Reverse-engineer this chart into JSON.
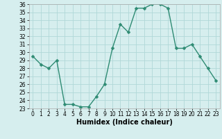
{
  "x": [
    0,
    1,
    2,
    3,
    4,
    5,
    6,
    7,
    8,
    9,
    10,
    11,
    12,
    13,
    14,
    15,
    16,
    17,
    18,
    19,
    20,
    21,
    22,
    23
  ],
  "y": [
    29.5,
    28.5,
    28.0,
    29.0,
    23.5,
    23.5,
    23.2,
    23.2,
    24.5,
    26.0,
    30.5,
    33.5,
    32.5,
    35.5,
    35.5,
    36.0,
    36.0,
    35.5,
    30.5,
    30.5,
    31.0,
    29.5,
    28.0,
    26.5
  ],
  "line_color": "#2e8b73",
  "marker_color": "#2e8b73",
  "bg_color": "#d6eeee",
  "grid_color": "#b0d8d8",
  "xlabel": "Humidex (Indice chaleur)",
  "ylabel": "",
  "title": "",
  "xlim": [
    -0.5,
    23.5
  ],
  "ylim": [
    23,
    36
  ],
  "yticks": [
    23,
    24,
    25,
    26,
    27,
    28,
    29,
    30,
    31,
    32,
    33,
    34,
    35,
    36
  ],
  "xticks": [
    0,
    1,
    2,
    3,
    4,
    5,
    6,
    7,
    8,
    9,
    10,
    11,
    12,
    13,
    14,
    15,
    16,
    17,
    18,
    19,
    20,
    21,
    22,
    23
  ],
  "tick_fontsize": 5.5,
  "xlabel_fontsize": 7,
  "marker_size": 2.5,
  "line_width": 1.0
}
